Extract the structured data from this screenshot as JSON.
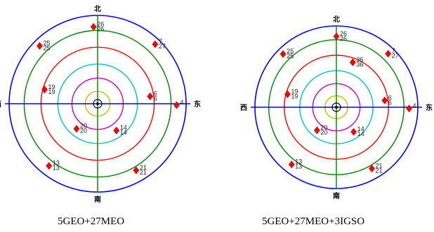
{
  "colors": {
    "ring_outer": "#0000ff",
    "ring_green": "#008000",
    "ring_red": "#ff0000",
    "ring_cyan": "#00c0c0",
    "ring_magenta": "#c000c0",
    "ring_yellow": "#c0c000",
    "axis": "#0000ff",
    "axis_ns": "#008000",
    "satellite": "#ff0000",
    "center": "#000000"
  },
  "directions": {
    "north": "北",
    "south": "南",
    "east": "东",
    "west": "西"
  },
  "plots": [
    {
      "caption": "5GEO+27MEO",
      "satellites": [
        {
          "id": "26",
          "labels": [
            "26",
            "26"
          ],
          "az": 357,
          "el": 10
        },
        {
          "id": "25",
          "labels": [
            "25",
            "25"
          ],
          "az": 315,
          "el": 5
        },
        {
          "id": "7",
          "labels": [
            "7",
            "27"
          ],
          "az": 44,
          "el": 4
        },
        {
          "id": "19",
          "labels": [
            "19",
            "19"
          ],
          "az": 285,
          "el": 33
        },
        {
          "id": "6",
          "labels": [
            "6",
            "6"
          ],
          "az": 82,
          "el": 35
        },
        {
          "id": "4",
          "labels": [
            "4"
          ],
          "az": 91,
          "el": 8
        },
        {
          "id": "20",
          "labels": [
            "20",
            "20"
          ],
          "az": 220,
          "el": 56
        },
        {
          "id": "14",
          "labels": [
            "14",
            "14"
          ],
          "az": 145,
          "el": 56
        },
        {
          "id": "13",
          "labels": [
            "13",
            "13"
          ],
          "az": 218,
          "el": 8
        },
        {
          "id": "21",
          "labels": [
            "21",
            "21"
          ],
          "az": 150,
          "el": 10
        }
      ]
    },
    {
      "caption": "5GEO+27MEO+3IGSO",
      "satellites": [
        {
          "id": "26",
          "labels": [
            "26",
            "26"
          ],
          "az": 0,
          "el": 10
        },
        {
          "id": "25",
          "labels": [
            "25",
            "25"
          ],
          "az": 315,
          "el": 5
        },
        {
          "id": "7",
          "labels": [
            "7",
            "27"
          ],
          "az": 44,
          "el": 6
        },
        {
          "id": "36",
          "labels": [
            "36",
            "36"
          ],
          "az": 20,
          "el": 36
        },
        {
          "id": "19",
          "labels": [
            "19",
            "19"
          ],
          "az": 285,
          "el": 33
        },
        {
          "id": "6",
          "labels": [
            "6",
            "6"
          ],
          "az": 82,
          "el": 35
        },
        {
          "id": "4",
          "labels": [
            "4"
          ],
          "az": 91,
          "el": 8
        },
        {
          "id": "20",
          "labels": [
            "20",
            "20"
          ],
          "az": 220,
          "el": 56
        },
        {
          "id": "14",
          "labels": [
            "14",
            "14"
          ],
          "az": 145,
          "el": 56
        },
        {
          "id": "13",
          "labels": [
            "13",
            "13"
          ],
          "az": 218,
          "el": 8
        },
        {
          "id": "21",
          "labels": [
            "21",
            "21"
          ],
          "az": 150,
          "el": 10
        }
      ]
    }
  ]
}
